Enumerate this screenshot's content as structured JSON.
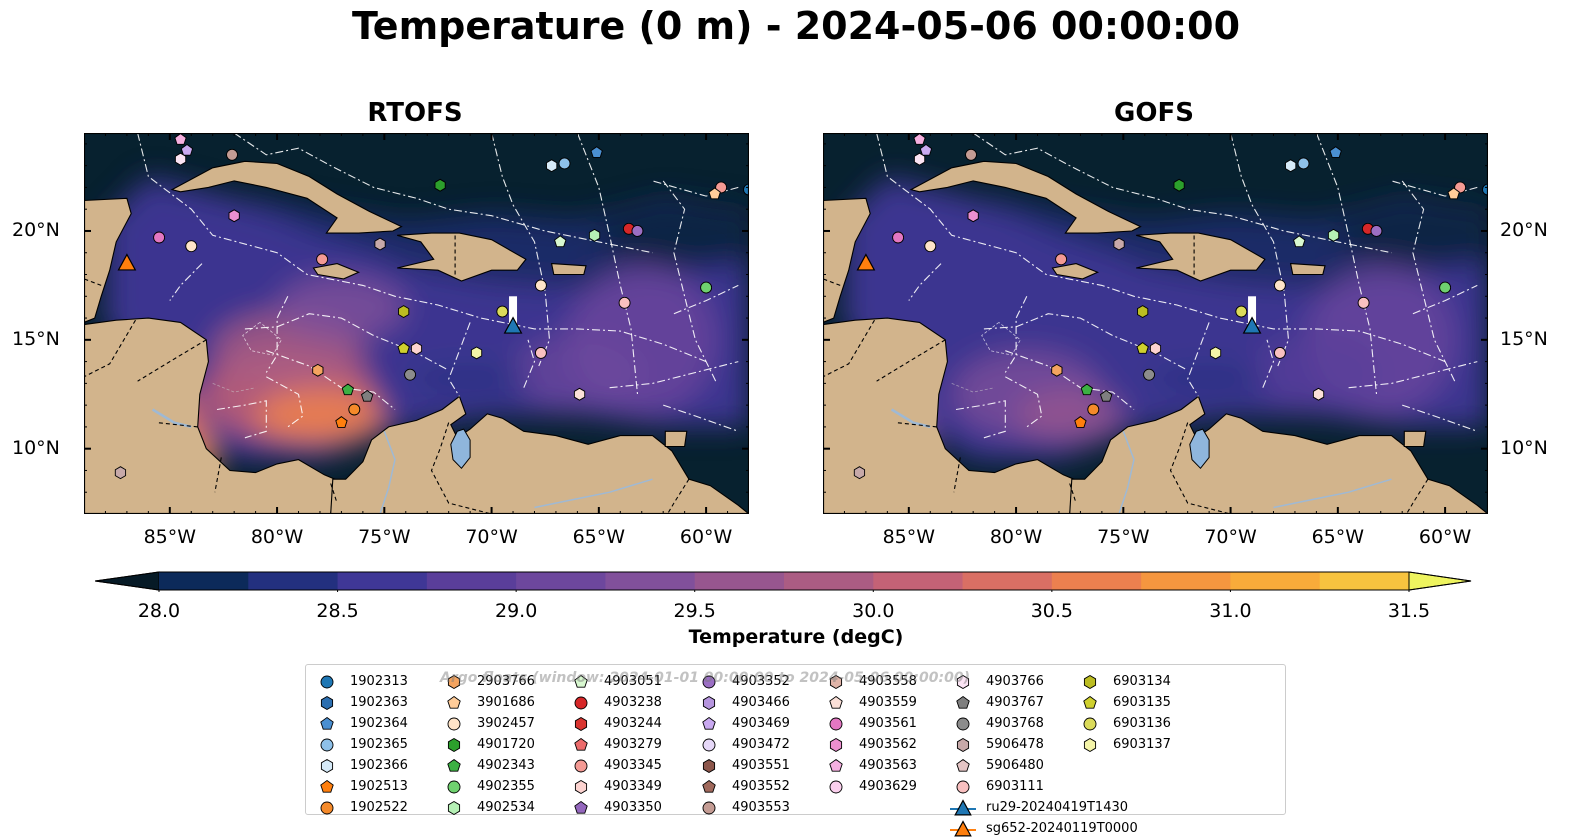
{
  "title": "Temperature (0 m) - 2024-05-06 00:00:00",
  "panels": [
    {
      "title": "RTOFS",
      "variant": "warm"
    },
    {
      "title": "GOFS",
      "variant": "cool"
    }
  ],
  "map_extent": {
    "lon_min": -89,
    "lon_max": -58,
    "lat_min": 7,
    "lat_max": 24.5
  },
  "lon_ticks": [
    {
      "value": -85,
      "label": "85°W"
    },
    {
      "value": -80,
      "label": "80°W"
    },
    {
      "value": -75,
      "label": "75°W"
    },
    {
      "value": -70,
      "label": "70°W"
    },
    {
      "value": -65,
      "label": "65°W"
    },
    {
      "value": -60,
      "label": "60°W"
    }
  ],
  "lat_ticks": [
    {
      "value": 20,
      "label": "20°N"
    },
    {
      "value": 15,
      "label": "15°N"
    },
    {
      "value": 10,
      "label": "10°N"
    }
  ],
  "colorbar": {
    "label": "Temperature (degC)",
    "min": 28.0,
    "max": 31.5,
    "step": 0.25,
    "extend": "both",
    "ticks": [
      "28.0",
      "28.5",
      "29.0",
      "29.5",
      "30.0",
      "30.5",
      "31.0",
      "31.5"
    ],
    "colors": [
      "#07212f",
      "#0c2a5a",
      "#23307f",
      "#3f3796",
      "#5a3e9a",
      "#6d479d",
      "#81509b",
      "#97568f",
      "#ab5c83",
      "#c46276",
      "#d96f64",
      "#ec804f",
      "#f5963f",
      "#f8ab3a",
      "#f7c33f",
      "#efe353"
    ],
    "under_color": "#061a26",
    "over_color": "#eef45f"
  },
  "land_color": "#d2b48c",
  "ocean_color": "#07212f",
  "watermark": "Argo floats (window: 2024-01-01 00:00:00 to 2024-05-06 00:00:00)",
  "legend": {
    "columns": [
      [
        {
          "label": "1902313",
          "marker": "circle",
          "color": "#1f77b4"
        },
        {
          "label": "1902363",
          "marker": "hexagon",
          "color": "#2c6fb0"
        },
        {
          "label": "1902364",
          "marker": "pentagon",
          "color": "#4a8fd1"
        },
        {
          "label": "1902365",
          "marker": "circle",
          "color": "#8ec0e8"
        },
        {
          "label": "1902366",
          "marker": "hexagon",
          "color": "#d6eaf8"
        },
        {
          "label": "1902513",
          "marker": "pentagon",
          "color": "#ff7f0e"
        },
        {
          "label": "1902522",
          "marker": "circle",
          "color": "#f58a2a"
        }
      ],
      [
        {
          "label": "2903766",
          "marker": "hexagon",
          "color": "#f4a460"
        },
        {
          "label": "3901686",
          "marker": "pentagon",
          "color": "#ffcc99"
        },
        {
          "label": "3902457",
          "marker": "circle",
          "color": "#ffe4c8"
        },
        {
          "label": "4901720",
          "marker": "hexagon",
          "color": "#2ca02c"
        },
        {
          "label": "4902343",
          "marker": "pentagon",
          "color": "#3cb043"
        },
        {
          "label": "4902355",
          "marker": "circle",
          "color": "#6fd16f"
        },
        {
          "label": "4902534",
          "marker": "hexagon",
          "color": "#b5f0b5"
        }
      ],
      [
        {
          "label": "4903051",
          "marker": "pentagon",
          "color": "#d8f8d0"
        },
        {
          "label": "4903238",
          "marker": "circle",
          "color": "#d62728"
        },
        {
          "label": "4903244",
          "marker": "hexagon",
          "color": "#d9342f"
        },
        {
          "label": "4903279",
          "marker": "pentagon",
          "color": "#ec6b6b"
        },
        {
          "label": "4903345",
          "marker": "circle",
          "color": "#f49a94"
        },
        {
          "label": "4903349",
          "marker": "hexagon",
          "color": "#fcd3d0"
        },
        {
          "label": "4903350",
          "marker": "pentagon",
          "color": "#9467bd"
        }
      ],
      [
        {
          "label": "4903352",
          "marker": "circle",
          "color": "#9b6fc4"
        },
        {
          "label": "4903466",
          "marker": "hexagon",
          "color": "#b695de"
        },
        {
          "label": "4903469",
          "marker": "pentagon",
          "color": "#c9a9f0"
        },
        {
          "label": "4903472",
          "marker": "circle",
          "color": "#e6d8f8"
        },
        {
          "label": "4903551",
          "marker": "hexagon",
          "color": "#8c564b"
        },
        {
          "label": "4903552",
          "marker": "pentagon",
          "color": "#a0695c"
        },
        {
          "label": "4903553",
          "marker": "circle",
          "color": "#c49c94"
        }
      ],
      [
        {
          "label": "4903558",
          "marker": "hexagon",
          "color": "#e0b4a8"
        },
        {
          "label": "4903559",
          "marker": "pentagon",
          "color": "#fbe0d8"
        },
        {
          "label": "4903561",
          "marker": "circle",
          "color": "#e377c2"
        },
        {
          "label": "4903562",
          "marker": "hexagon",
          "color": "#ec8fd0"
        },
        {
          "label": "4903563",
          "marker": "pentagon",
          "color": "#f5b0e0"
        },
        {
          "label": "4903629",
          "marker": "circle",
          "color": "#fbd0ee"
        }
      ],
      [
        {
          "label": "4903766",
          "marker": "hexagon",
          "color": "#fbe4f4"
        },
        {
          "label": "4903767",
          "marker": "pentagon",
          "color": "#7f7f7f"
        },
        {
          "label": "4903768",
          "marker": "circle",
          "color": "#8c8c8c"
        },
        {
          "label": "5906478",
          "marker": "hexagon",
          "color": "#c7a9a9"
        },
        {
          "label": "5906480",
          "marker": "pentagon",
          "color": "#e5c5c5"
        },
        {
          "label": "6903111",
          "marker": "circle",
          "color": "#f9c0c0"
        },
        {
          "label": "ru29-20240419T1430",
          "marker": "triangle-line",
          "color": "#1f77b4"
        },
        {
          "label": "sg652-20240119T0000",
          "marker": "triangle-line",
          "color": "#ff7f0e"
        }
      ],
      [
        {
          "label": "6903134",
          "marker": "hexagon",
          "color": "#bcbd22"
        },
        {
          "label": "6903135",
          "marker": "pentagon",
          "color": "#cfd02e"
        },
        {
          "label": "6903136",
          "marker": "circle",
          "color": "#dbdb5a"
        },
        {
          "label": "6903137",
          "marker": "hexagon",
          "color": "#f4f4a8"
        }
      ]
    ]
  },
  "floats": [
    {
      "id": "4903563",
      "lon": -84.5,
      "lat": 24.2,
      "marker": "pentagon",
      "color": "#f5b0e0"
    },
    {
      "id": "4903469",
      "lon": -84.2,
      "lat": 23.7,
      "marker": "pentagon",
      "color": "#c9a9f0"
    },
    {
      "id": "4903766",
      "lon": -84.5,
      "lat": 23.3,
      "marker": "hexagon",
      "color": "#fbe4f4"
    },
    {
      "id": "4903553",
      "lon": -82.1,
      "lat": 23.5,
      "marker": "circle",
      "color": "#c49c94"
    },
    {
      "id": "1902365",
      "lon": -66.6,
      "lat": 23.1,
      "marker": "circle",
      "color": "#8ec0e8"
    },
    {
      "id": "1902366",
      "lon": -67.2,
      "lat": 23.0,
      "marker": "hexagon",
      "color": "#d6eaf8"
    },
    {
      "id": "1902364",
      "lon": -65.1,
      "lat": 23.6,
      "marker": "pentagon",
      "color": "#4a8fd1"
    },
    {
      "id": "4901720",
      "lon": -72.4,
      "lat": 22.1,
      "marker": "hexagon",
      "color": "#2ca02c"
    },
    {
      "id": "4903345",
      "lon": -59.3,
      "lat": 22.0,
      "marker": "circle",
      "color": "#f49a94"
    },
    {
      "id": "3901686",
      "lon": -59.6,
      "lat": 21.7,
      "marker": "pentagon",
      "color": "#ffcc99"
    },
    {
      "id": "1902313",
      "lon": -58.0,
      "lat": 21.9,
      "marker": "circle",
      "color": "#1f77b4"
    },
    {
      "id": "4903562",
      "lon": -82.0,
      "lat": 20.7,
      "marker": "hexagon",
      "color": "#ec8fd0"
    },
    {
      "id": "4903561",
      "lon": -85.5,
      "lat": 19.7,
      "marker": "circle",
      "color": "#e377c2"
    },
    {
      "id": "3902457",
      "lon": -84.0,
      "lat": 19.3,
      "marker": "circle",
      "color": "#ffe4c8"
    },
    {
      "id": "5906478",
      "lon": -75.2,
      "lat": 19.4,
      "marker": "hexagon",
      "color": "#c7a9a9"
    },
    {
      "id": "4903345",
      "lon": -77.9,
      "lat": 18.7,
      "marker": "circle",
      "color": "#f49a94"
    },
    {
      "id": "4903051",
      "lon": -66.8,
      "lat": 19.5,
      "marker": "pentagon",
      "color": "#d8f8d0"
    },
    {
      "id": "4902534",
      "lon": -65.2,
      "lat": 19.8,
      "marker": "hexagon",
      "color": "#b5f0b5"
    },
    {
      "id": "4903238",
      "lon": -63.6,
      "lat": 20.1,
      "marker": "circle",
      "color": "#d62728"
    },
    {
      "id": "4903352",
      "lon": -63.2,
      "lat": 20.0,
      "marker": "circle",
      "color": "#9b6fc4"
    },
    {
      "id": "3902457",
      "lon": -67.7,
      "lat": 17.5,
      "marker": "circle",
      "color": "#ffe4c8"
    },
    {
      "id": "4902355",
      "lon": -60.0,
      "lat": 17.4,
      "marker": "circle",
      "color": "#6fd16f"
    },
    {
      "id": "6903111",
      "lon": -63.8,
      "lat": 16.7,
      "marker": "circle",
      "color": "#f9c0c0"
    },
    {
      "id": "6903134",
      "lon": -74.1,
      "lat": 16.3,
      "marker": "hexagon",
      "color": "#bcbd22"
    },
    {
      "id": "6903136",
      "lon": -69.5,
      "lat": 16.3,
      "marker": "circle",
      "color": "#dbdb5a"
    },
    {
      "id": "6903135",
      "lon": -74.1,
      "lat": 14.6,
      "marker": "pentagon",
      "color": "#cfd02e"
    },
    {
      "id": "4903349",
      "lon": -73.5,
      "lat": 14.6,
      "marker": "hexagon",
      "color": "#fcd3d0"
    },
    {
      "id": "6903137",
      "lon": -70.7,
      "lat": 14.4,
      "marker": "hexagon",
      "color": "#f4f4a8"
    },
    {
      "id": "6903111",
      "lon": -67.7,
      "lat": 14.4,
      "marker": "circle",
      "color": "#f9c0c0"
    },
    {
      "id": "2903766",
      "lon": -78.1,
      "lat": 13.6,
      "marker": "hexagon",
      "color": "#f4a460"
    },
    {
      "id": "4903768",
      "lon": -73.8,
      "lat": 13.4,
      "marker": "circle",
      "color": "#8c8c8c"
    },
    {
      "id": "4902343",
      "lon": -76.7,
      "lat": 12.7,
      "marker": "pentagon",
      "color": "#3cb043"
    },
    {
      "id": "4903767",
      "lon": -75.8,
      "lat": 12.4,
      "marker": "pentagon",
      "color": "#7f7f7f"
    },
    {
      "id": "1902522",
      "lon": -76.4,
      "lat": 11.8,
      "marker": "circle",
      "color": "#f58a2a"
    },
    {
      "id": "1902513",
      "lon": -77.0,
      "lat": 11.2,
      "marker": "pentagon",
      "color": "#ff7f0e"
    },
    {
      "id": "4903559",
      "lon": -65.9,
      "lat": 12.5,
      "marker": "hexagon",
      "color": "#fbe0d8"
    },
    {
      "id": "5906478",
      "lon": -87.3,
      "lat": 8.9,
      "marker": "hexagon",
      "color": "#c7a9a9"
    }
  ],
  "gliders": [
    {
      "id": "ru29-20240419T1430",
      "lon": -69.0,
      "lat": 15.6,
      "track_top_lat": 17.0,
      "color": "#1f77b4"
    },
    {
      "id": "sg652-20240119T0000",
      "lon": -87.0,
      "lat": 18.5,
      "track_top_lat": 18.5,
      "color": "#ff7f0e"
    }
  ]
}
